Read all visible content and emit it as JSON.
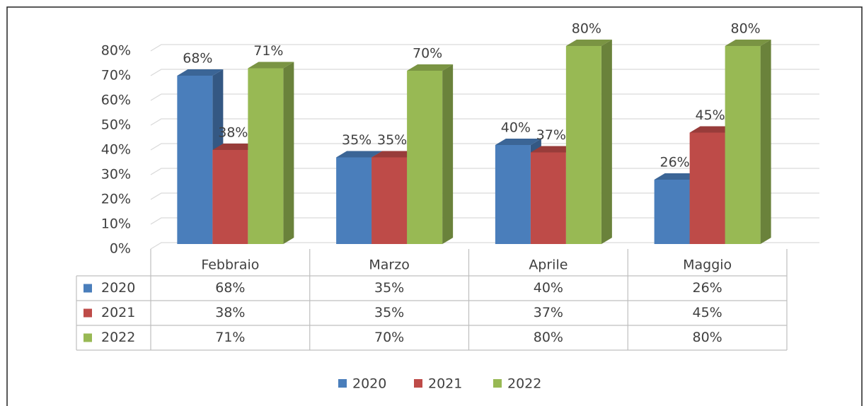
{
  "chart_data": {
    "type": "bar3d",
    "categories": [
      "Febbraio",
      "Marzo",
      "Aprile",
      "Maggio"
    ],
    "series": [
      {
        "name": "2020",
        "color": "#4a7ebb",
        "values": [
          68,
          35,
          40,
          26
        ],
        "value_labels": [
          "68%",
          "35%",
          "40%",
          "26%"
        ]
      },
      {
        "name": "2021",
        "color": "#be4b48",
        "values": [
          38,
          35,
          37,
          45
        ],
        "value_labels": [
          "38%",
          "35%",
          "37%",
          "45%"
        ]
      },
      {
        "name": "2022",
        "color": "#98b954",
        "values": [
          71,
          70,
          80,
          80
        ],
        "value_labels": [
          "71%",
          "70%",
          "80%",
          "80%"
        ]
      }
    ],
    "ylim": [
      0,
      80
    ],
    "yticks": [
      {
        "value": 0,
        "label": "0%"
      },
      {
        "value": 10,
        "label": "10%"
      },
      {
        "value": 20,
        "label": "20%"
      },
      {
        "value": 30,
        "label": "30%"
      },
      {
        "value": 40,
        "label": "40%"
      },
      {
        "value": 50,
        "label": "50%"
      },
      {
        "value": 60,
        "label": "60%"
      },
      {
        "value": 70,
        "label": "70%"
      },
      {
        "value": 80,
        "label": "80%"
      }
    ],
    "grid": true,
    "data_table": true,
    "legend": "bottom"
  }
}
